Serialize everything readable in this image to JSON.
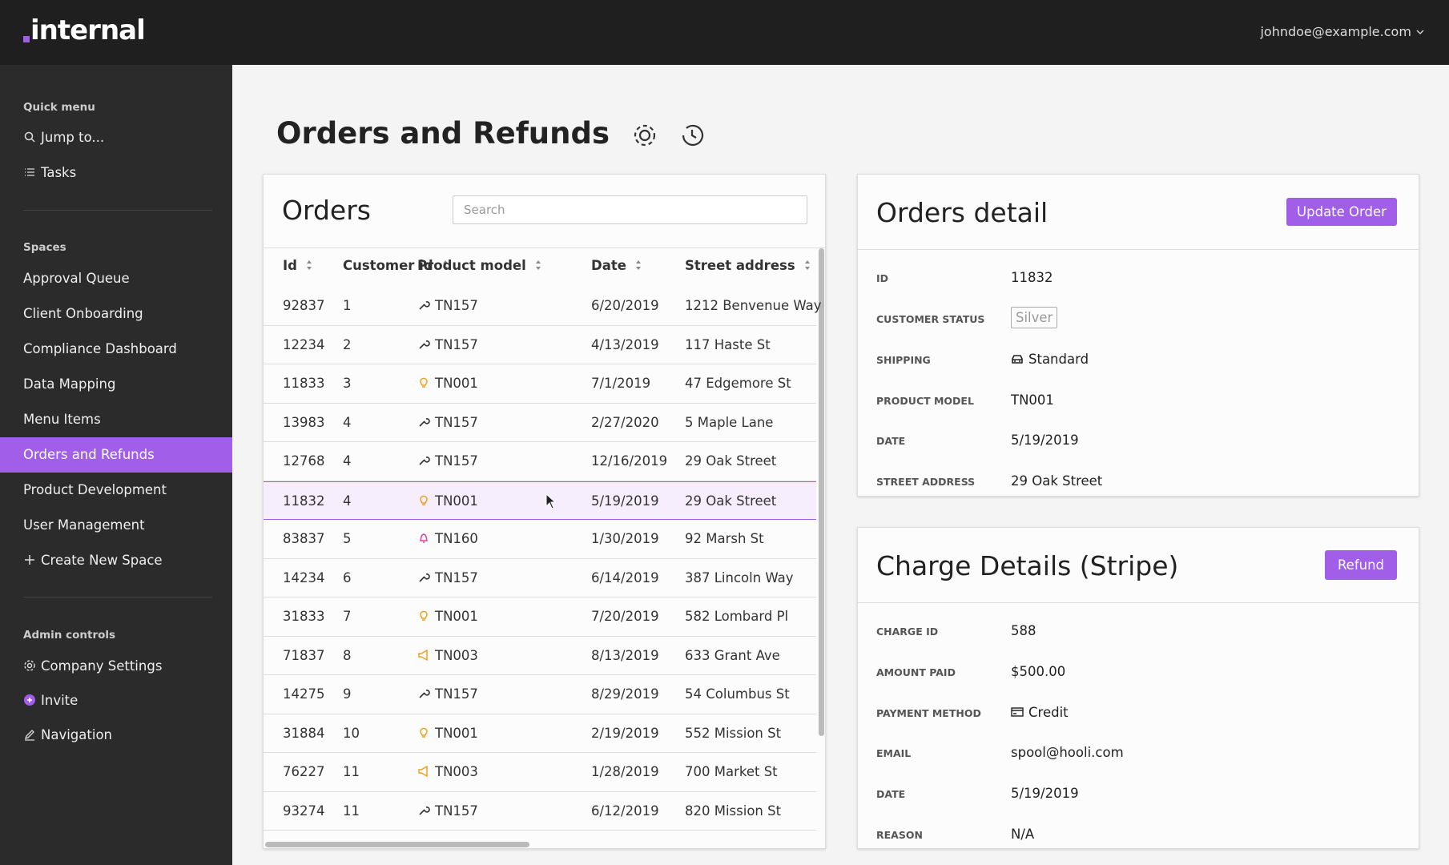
{
  "header": {
    "logo": "internal",
    "user": "johndoe@example.com"
  },
  "sidebar": {
    "sections": [
      {
        "title": "Quick menu",
        "items": [
          "Jump to...",
          "Tasks"
        ]
      },
      {
        "title": "Spaces",
        "items": [
          "Approval Queue",
          "Client Onboarding",
          "Compliance Dashboard",
          "Data Mapping",
          "Menu Items",
          "Orders and Refunds",
          "Product Development",
          "User Management",
          "Create New Space"
        ]
      },
      {
        "title": "Admin controls",
        "items": [
          "Company Settings",
          "Invite",
          "Navigation"
        ]
      }
    ]
  },
  "page": {
    "title": "Orders and Refunds"
  },
  "orders": {
    "title": "Orders",
    "search_placeholder": "Search",
    "columns": [
      "Id",
      "Customer id",
      "Product model",
      "Date",
      "Street address"
    ],
    "rows": [
      [
        "92837",
        "1",
        "TN157",
        "6/20/2019",
        "1212 Benvenue Way"
      ],
      [
        "12234",
        "2",
        "TN157",
        "4/13/2019",
        "117 Haste St"
      ],
      [
        "11833",
        "3",
        "TN001",
        "7/1/2019",
        "47 Edgemore St"
      ],
      [
        "13983",
        "4",
        "TN157",
        "2/27/2020",
        "5 Maple Lane"
      ],
      [
        "12768",
        "4",
        "TN157",
        "12/16/2019",
        "29 Oak Street"
      ],
      [
        "11832",
        "4",
        "TN001",
        "5/19/2019",
        "29 Oak Street"
      ],
      [
        "83837",
        "5",
        "TN160",
        "1/30/2019",
        "92 Marsh St"
      ],
      [
        "14234",
        "6",
        "TN157",
        "6/14/2019",
        "387 Lincoln Way"
      ],
      [
        "31833",
        "7",
        "TN001",
        "7/20/2019",
        "582 Lombard Pl"
      ],
      [
        "71837",
        "8",
        "TN003",
        "8/13/2019",
        "633 Grant Ave"
      ],
      [
        "14275",
        "9",
        "TN157",
        "8/29/2019",
        "54 Columbus St"
      ],
      [
        "31884",
        "10",
        "TN001",
        "2/19/2019",
        "552 Mission St"
      ],
      [
        "76227",
        "11",
        "TN003",
        "1/28/2019",
        "700 Market St"
      ],
      [
        "93274",
        "11",
        "TN157",
        "6/12/2019",
        "820 Mission St"
      ]
    ]
  },
  "order_detail": {
    "title": "Orders detail",
    "button": "Update Order",
    "fields": [
      {
        "label": "ID",
        "value": "11832"
      },
      {
        "label": "CUSTOMER STATUS",
        "value": "Silver"
      },
      {
        "label": "SHIPPING",
        "value": "Standard"
      },
      {
        "label": "PRODUCT MODEL",
        "value": "TN001"
      },
      {
        "label": "DATE",
        "value": "5/19/2019"
      },
      {
        "label": "STREET ADDRESS",
        "value": "29 Oak Street"
      }
    ]
  },
  "charge_details": {
    "title": "Charge Details (Stripe)",
    "button": "Refund",
    "fields": [
      {
        "label": "CHARGE ID",
        "value": "588"
      },
      {
        "label": "AMOUNT PAID",
        "value": "$500.00"
      },
      {
        "label": "PAYMENT METHOD",
        "value": "Credit"
      },
      {
        "label": "EMAIL",
        "value": "spool@hooli.com"
      },
      {
        "label": "DATE",
        "value": "5/19/2019"
      },
      {
        "label": "REASON",
        "value": "N/A"
      }
    ]
  }
}
